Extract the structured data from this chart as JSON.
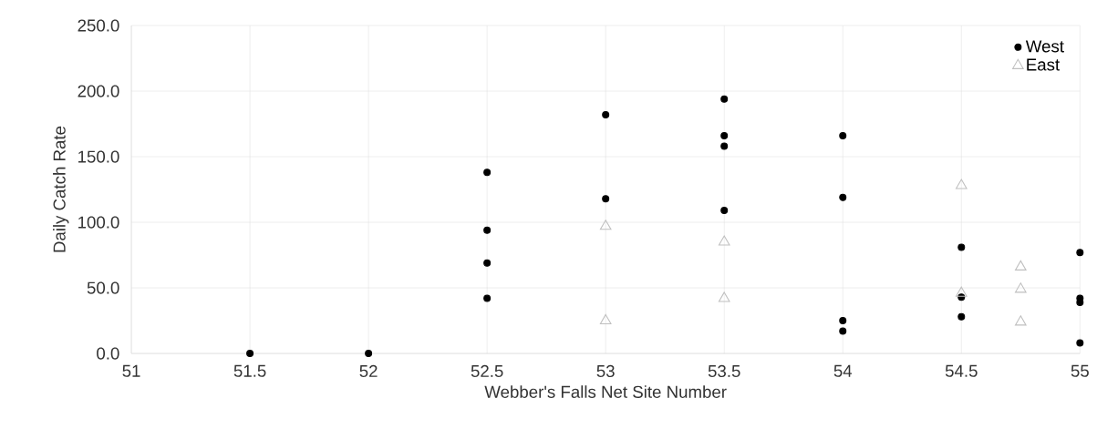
{
  "chart_data": {
    "type": "scatter",
    "xlabel": "Webber's Falls Net Site Number",
    "ylabel": "Daily Catch Rate",
    "xlim": [
      51,
      55
    ],
    "xticks": [
      51,
      51.5,
      52,
      52.5,
      53,
      53.5,
      54,
      54.5,
      55
    ],
    "ylim": [
      0,
      250
    ],
    "yticks": [
      {
        "value": 0,
        "label": "0.0"
      },
      {
        "value": 50,
        "label": "50.0"
      },
      {
        "value": 100,
        "label": "100.0"
      },
      {
        "value": 150,
        "label": "150.0"
      },
      {
        "value": 200,
        "label": "200.0"
      },
      {
        "value": 250,
        "label": "250.0"
      }
    ],
    "grid": true,
    "legend": "top right",
    "series": [
      {
        "name": "West",
        "color": "#000000",
        "marker": "circle",
        "x": [
          51.5,
          52,
          52.5,
          52.5,
          52.5,
          52.5,
          53,
          53,
          53.5,
          53.5,
          53.5,
          53.5,
          54,
          54,
          54,
          54,
          54.5,
          54.5,
          54.5,
          55,
          55,
          55,
          55
        ],
        "values": [
          0,
          0,
          138,
          94,
          69,
          42,
          182,
          118,
          194,
          166,
          158,
          109,
          166,
          119,
          25,
          17,
          81,
          43,
          28,
          77,
          42,
          39,
          8
        ]
      },
      {
        "name": "East",
        "color": "#bfbfbf",
        "marker": "triangle",
        "x": [
          53,
          53,
          53.5,
          53.5,
          54.5,
          54.5,
          54.75,
          54.75,
          54.75
        ],
        "values": [
          97,
          25,
          85,
          42,
          128,
          46,
          66,
          49,
          24
        ]
      }
    ]
  }
}
